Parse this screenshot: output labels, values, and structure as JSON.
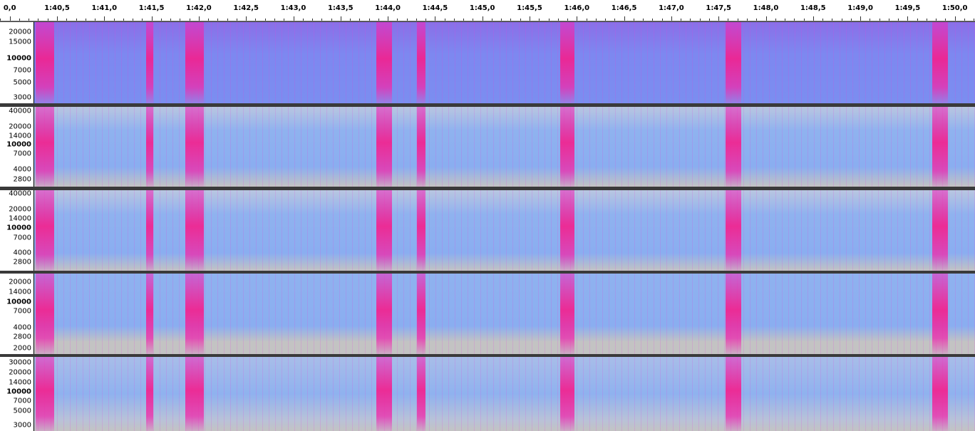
{
  "timeline": {
    "labels": [
      "0,0",
      "1:40,5",
      "1:41,0",
      "1:41,5",
      "1:42,0",
      "1:42,5",
      "1:43,0",
      "1:43,5",
      "1:44,0",
      "1:44,5",
      "1:45,0",
      "1:45,5",
      "1:46,0",
      "1:46,5",
      "1:47,0",
      "1:47,5",
      "1:48,0",
      "1:48,5",
      "1:49,0",
      "1:49,5",
      "1:50,0"
    ]
  },
  "tracks": [
    {
      "scale": [
        "20000",
        "15000",
        "10000",
        "7000",
        "5000",
        "3000"
      ]
    },
    {
      "scale": [
        "40000",
        "20000",
        "14000",
        "10000",
        "7000",
        "4000",
        "2800"
      ]
    },
    {
      "scale": [
        "40000",
        "20000",
        "14000",
        "10000",
        "7000",
        "4000",
        "2800"
      ]
    },
    {
      "scale": [
        "20000",
        "14000",
        "10000",
        "7000",
        "4000",
        "2800",
        "2000"
      ]
    },
    {
      "scale": [
        "30000",
        "20000",
        "14000",
        "10000",
        "7000",
        "5000",
        "3000"
      ]
    }
  ]
}
